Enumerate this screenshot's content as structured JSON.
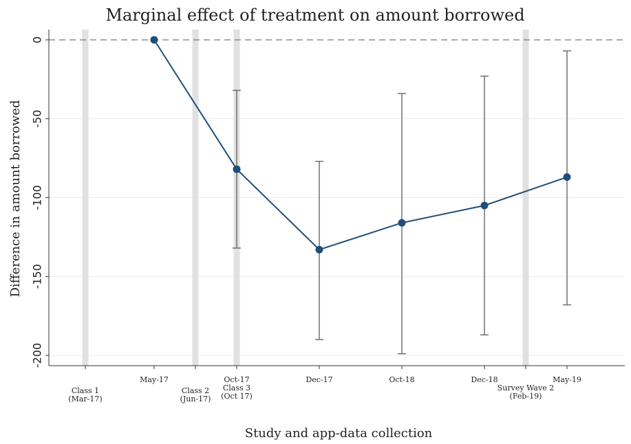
{
  "chart_data": {
    "type": "line",
    "title": "Marginal effect of treatment on amount borrowed",
    "xlabel": "Study and app-data collection",
    "ylabel": "Difference in amount borrowed",
    "ylim": [
      -205,
      5
    ],
    "yticks": [
      0,
      -50,
      -100,
      -150,
      -200
    ],
    "ytick_labels": [
      "0",
      "-50",
      "-100",
      "-150",
      "-200"
    ],
    "xlim": [
      0,
      7.9
    ],
    "reference_line": 0,
    "colors": {
      "series": "#1f4e79",
      "ci": "#666666",
      "event_band": "#e1e1e1",
      "reference": "#777777"
    },
    "x_ticks": [
      {
        "x": 0,
        "lines": [
          "Class 1",
          "(Mar-17)"
        ]
      },
      {
        "x": 1,
        "lines": [
          "May-17"
        ]
      },
      {
        "x": 1.6,
        "lines": [
          "Class 2",
          "(Jun-17)"
        ]
      },
      {
        "x": 2.2,
        "lines": [
          "Oct-17",
          "Class 3",
          "(Oct 17)"
        ]
      },
      {
        "x": 3.4,
        "lines": [
          "Dec-17"
        ]
      },
      {
        "x": 4.6,
        "lines": [
          "Oct-18"
        ]
      },
      {
        "x": 5.8,
        "lines": [
          "Dec-18"
        ]
      },
      {
        "x": 6.4,
        "lines": [
          "",
          "Survey Wave 2",
          "(Feb-19)"
        ]
      },
      {
        "x": 7,
        "lines": [
          "May-19"
        ]
      }
    ],
    "events": [
      {
        "x": 0
      },
      {
        "x": 1.6
      },
      {
        "x": 2.2
      },
      {
        "x": 6.4
      }
    ],
    "series": [
      {
        "points": [
          {
            "label": "May-17",
            "x": 1,
            "y": 0,
            "ci": null
          },
          {
            "label": "Oct-17",
            "x": 2.2,
            "y": -82,
            "ci": [
              -132,
              -32
            ]
          },
          {
            "label": "Dec-17",
            "x": 3.4,
            "y": -133,
            "ci": [
              -190,
              -77
            ]
          },
          {
            "label": "Oct-18",
            "x": 4.6,
            "y": -116,
            "ci": [
              -199,
              -34
            ]
          },
          {
            "label": "Dec-18",
            "x": 5.8,
            "y": -105,
            "ci": [
              -187,
              -23
            ]
          },
          {
            "label": "May-19",
            "x": 7,
            "y": -87,
            "ci": [
              -168,
              -7
            ]
          }
        ]
      }
    ]
  }
}
